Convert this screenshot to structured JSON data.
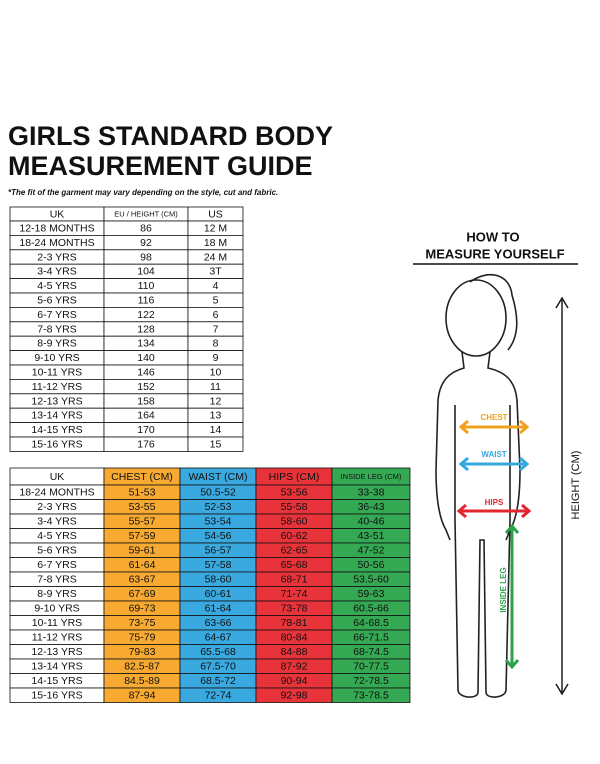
{
  "header": {
    "title_lines": [
      "GIRLS STANDARD BODY",
      "MEASUREMENT GUIDE"
    ],
    "note": "*The fit of the garment may vary depending on the style, cut and fabric."
  },
  "table1": {
    "headers": [
      "UK",
      "EU / HEIGHT (CM)",
      "US"
    ],
    "rows": [
      [
        "12-18 MONTHS",
        "86",
        "12 M"
      ],
      [
        "18-24 MONTHS",
        "92",
        "18 M"
      ],
      [
        "2-3 YRS",
        "98",
        "24 M"
      ],
      [
        "3-4 YRS",
        "104",
        "3T"
      ],
      [
        "4-5 YRS",
        "110",
        "4"
      ],
      [
        "5-6 YRS",
        "116",
        "5"
      ],
      [
        "6-7 YRS",
        "122",
        "6"
      ],
      [
        "7-8 YRS",
        "128",
        "7"
      ],
      [
        "8-9 YRS",
        "134",
        "8"
      ],
      [
        "9-10 YRS",
        "140",
        "9"
      ],
      [
        "10-11 YRS",
        "146",
        "10"
      ],
      [
        "11-12 YRS",
        "152",
        "11"
      ],
      [
        "12-13 YRS",
        "158",
        "12"
      ],
      [
        "13-14 YRS",
        "164",
        "13"
      ],
      [
        "14-15 YRS",
        "170",
        "14"
      ],
      [
        "15-16 YRS",
        "176",
        "15"
      ]
    ]
  },
  "table2": {
    "headers": [
      "UK",
      "CHEST (CM)",
      "WAIST (CM)",
      "HIPS (CM)",
      "INSIDE LEG (CM)"
    ],
    "rows": [
      [
        "18-24 MONTHS",
        "51-53",
        "50.5-52",
        "53-56",
        "33-38"
      ],
      [
        "2-3 YRS",
        "53-55",
        "52-53",
        "55-58",
        "36-43"
      ],
      [
        "3-4 YRS",
        "55-57",
        "53-54",
        "58-60",
        "40-46"
      ],
      [
        "4-5 YRS",
        "57-59",
        "54-56",
        "60-62",
        "43-51"
      ],
      [
        "5-6 YRS",
        "59-61",
        "56-57",
        "62-65",
        "47-52"
      ],
      [
        "6-7 YRS",
        "61-64",
        "57-58",
        "65-68",
        "50-56"
      ],
      [
        "7-8 YRS",
        "63-67",
        "58-60",
        "68-71",
        "53.5-60"
      ],
      [
        "8-9 YRS",
        "67-69",
        "60-61",
        "71-74",
        "59-63"
      ],
      [
        "9-10 YRS",
        "69-73",
        "61-64",
        "73-78",
        "60.5-66"
      ],
      [
        "10-11 YRS",
        "73-75",
        "63-66",
        "78-81",
        "64-68.5"
      ],
      [
        "11-12 YRS",
        "75-79",
        "64-67",
        "80-84",
        "66-71.5"
      ],
      [
        "12-13 YRS",
        "79-83",
        "65.5-68",
        "84-88",
        "68-74.5"
      ],
      [
        "13-14 YRS",
        "82.5-87",
        "67.5-70",
        "87-92",
        "70-77.5"
      ],
      [
        "14-15 YRS",
        "84.5-89",
        "68.5-72",
        "90-94",
        "72-78.5"
      ],
      [
        "15-16 YRS",
        "87-94",
        "72-74",
        "92-98",
        "73-78.5"
      ]
    ]
  },
  "figure": {
    "title_lines": [
      "HOW TO",
      "MEASURE YOURSELF"
    ],
    "chest": "CHEST",
    "waist": "WAIST",
    "hips": "HIPS",
    "inside_leg": "INSIDE LEG",
    "height": "HEIGHT (CM)"
  }
}
